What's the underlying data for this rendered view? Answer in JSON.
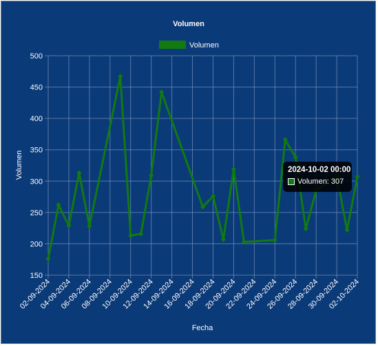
{
  "chart_data": {
    "type": "line",
    "title": "Volumen",
    "xlabel": "Fecha",
    "ylabel": "Volumen",
    "ylim": [
      150,
      500
    ],
    "yticks": [
      150,
      200,
      250,
      300,
      350,
      400,
      450,
      500
    ],
    "grid": true,
    "legend_position": "top",
    "x_tick_labels": [
      "02-09-2024",
      "04-09-2024",
      "06-09-2024",
      "08-09-2024",
      "10-09-2024",
      "12-09-2024",
      "14-09-2024",
      "16-09-2024",
      "18-09-2024",
      "20-09-2024",
      "22-09-2024",
      "24-09-2024",
      "26-09-2024",
      "28-09-2024",
      "30-09-2024",
      "02-10-2024"
    ],
    "series": [
      {
        "name": "Volumen",
        "color": "#117a11",
        "points": [
          {
            "x": "2024-09-02 00:00",
            "y": 176
          },
          {
            "x": "2024-09-03 00:00",
            "y": 262
          },
          {
            "x": "2024-09-04 00:00",
            "y": 229
          },
          {
            "x": "2024-09-05 00:00",
            "y": 313
          },
          {
            "x": "2024-09-06 00:00",
            "y": 228
          },
          {
            "x": "2024-09-09 00:00",
            "y": 467
          },
          {
            "x": "2024-09-10 00:00",
            "y": 213
          },
          {
            "x": "2024-09-11 00:00",
            "y": 216
          },
          {
            "x": "2024-09-12 00:00",
            "y": 309
          },
          {
            "x": "2024-09-13 00:00",
            "y": 442
          },
          {
            "x": "2024-09-17 00:00",
            "y": 259
          },
          {
            "x": "2024-09-18 00:00",
            "y": 276
          },
          {
            "x": "2024-09-19 00:00",
            "y": 207
          },
          {
            "x": "2024-09-20 00:00",
            "y": 319
          },
          {
            "x": "2024-09-21 00:00",
            "y": 203
          },
          {
            "x": "2024-09-24 00:00",
            "y": 206
          },
          {
            "x": "2024-09-25 00:00",
            "y": 366
          },
          {
            "x": "2024-09-26 00:00",
            "y": 338
          },
          {
            "x": "2024-09-27 00:00",
            "y": 224
          },
          {
            "x": "2024-09-28 00:00",
            "y": 285
          },
          {
            "x": "2024-09-30 00:00",
            "y": 308
          },
          {
            "x": "2024-10-01 00:00",
            "y": 222
          },
          {
            "x": "2024-10-02 00:00",
            "y": 307
          }
        ]
      }
    ]
  },
  "tooltip": {
    "title": "2024-10-02 00:00",
    "label": "Volumen: 307"
  },
  "colors": {
    "background": "#0b3a78",
    "line": "#117a11",
    "grid": "#8aa2c4",
    "text": "#ffffff"
  }
}
